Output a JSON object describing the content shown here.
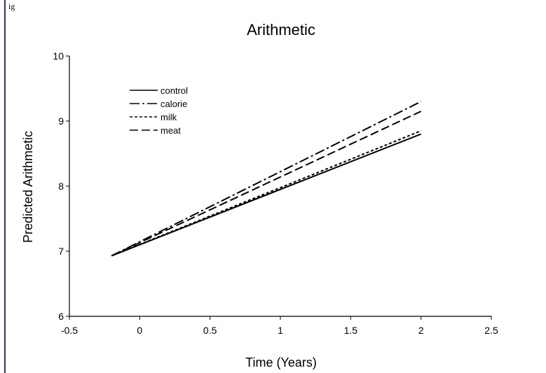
{
  "corner_text": "ig",
  "chart_data": {
    "type": "line",
    "title": "Arithmetic",
    "xlabel": "Time (Years)",
    "ylabel": "Predicted Arithmetic",
    "xlim": [
      -0.5,
      2.5
    ],
    "ylim": [
      6,
      10
    ],
    "xticks": [
      "-0.5",
      "0",
      "0.5",
      "1",
      "1.5",
      "2",
      "2.5"
    ],
    "yticks": [
      "6",
      "7",
      "8",
      "9",
      "10"
    ],
    "grid": false,
    "legend_position": "top-left",
    "series": [
      {
        "name": "control",
        "dash": "solid",
        "x": [
          -0.2,
          2
        ],
        "y": [
          6.93,
          8.8
        ]
      },
      {
        "name": "calorie",
        "dash": "dashdot",
        "x": [
          -0.2,
          2
        ],
        "y": [
          6.93,
          9.3
        ]
      },
      {
        "name": "milk",
        "dash": "dotted",
        "x": [
          -0.2,
          2
        ],
        "y": [
          6.93,
          8.85
        ]
      },
      {
        "name": "meat",
        "dash": "dashed",
        "x": [
          -0.2,
          2
        ],
        "y": [
          6.93,
          9.15
        ]
      }
    ]
  }
}
